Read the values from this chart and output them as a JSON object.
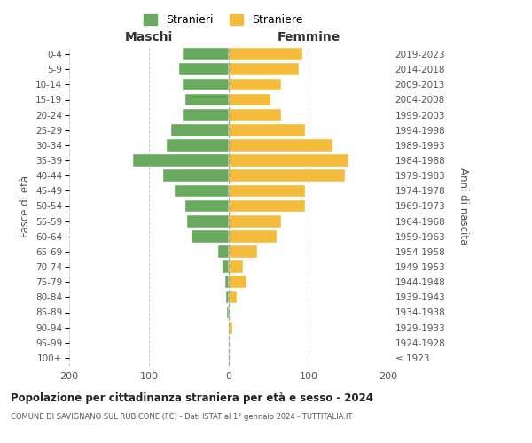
{
  "age_groups": [
    "100+",
    "95-99",
    "90-94",
    "85-89",
    "80-84",
    "75-79",
    "70-74",
    "65-69",
    "60-64",
    "55-59",
    "50-54",
    "45-49",
    "40-44",
    "35-39",
    "30-34",
    "25-29",
    "20-24",
    "15-19",
    "10-14",
    "5-9",
    "0-4"
  ],
  "birth_years": [
    "≤ 1923",
    "1924-1928",
    "1929-1933",
    "1934-1938",
    "1939-1943",
    "1944-1948",
    "1949-1953",
    "1954-1958",
    "1959-1963",
    "1964-1968",
    "1969-1973",
    "1974-1978",
    "1979-1983",
    "1984-1988",
    "1989-1993",
    "1994-1998",
    "1999-2003",
    "2004-2008",
    "2009-2013",
    "2014-2018",
    "2019-2023"
  ],
  "maschi": [
    0,
    0,
    0,
    2,
    3,
    4,
    8,
    13,
    47,
    52,
    55,
    68,
    82,
    120,
    78,
    72,
    58,
    55,
    58,
    62,
    58
  ],
  "femmine": [
    0,
    0,
    4,
    0,
    10,
    22,
    18,
    35,
    60,
    65,
    95,
    95,
    145,
    150,
    130,
    95,
    65,
    52,
    65,
    88,
    92
  ],
  "color_maschi": "#6aaa5e",
  "color_femmine": "#f5bc3c",
  "title": "Popolazione per cittadinanza straniera per età e sesso - 2024",
  "subtitle": "COMUNE DI SAVIGNANO SUL RUBICONE (FC) - Dati ISTAT al 1° gennaio 2024 - TUTTITALIA.IT",
  "xlabel_left": "Maschi",
  "xlabel_right": "Femmine",
  "ylabel_left": "Fasce di età",
  "ylabel_right": "Anni di nascita",
  "legend_maschi": "Stranieri",
  "legend_femmine": "Straniere",
  "xlim": 200,
  "bg_color": "#ffffff",
  "grid_color": "#cccccc",
  "bar_height": 0.8
}
